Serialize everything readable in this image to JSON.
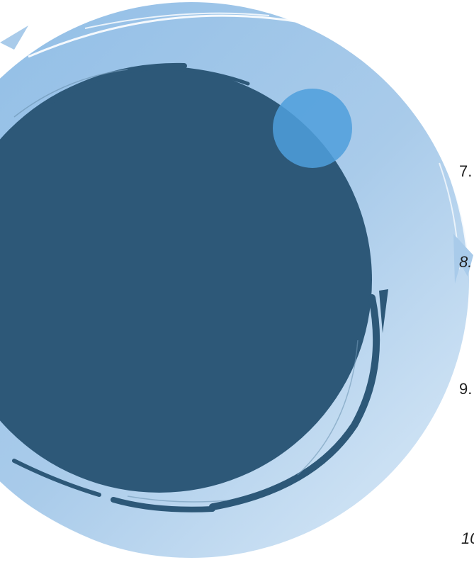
{
  "decoration": {
    "outer_ring_color": "#a9cbea",
    "outer_ring_light_color": "#d6e7f6",
    "inner_circle_color": "#2d5878",
    "accent_circle_color": "#4f9fdc"
  },
  "list_numbers": [
    {
      "label": "7.",
      "style": "normal"
    },
    {
      "label": "8.",
      "style": "italic"
    },
    {
      "label": "9.",
      "style": "normal"
    },
    {
      "label": "10",
      "style": "italic"
    }
  ]
}
